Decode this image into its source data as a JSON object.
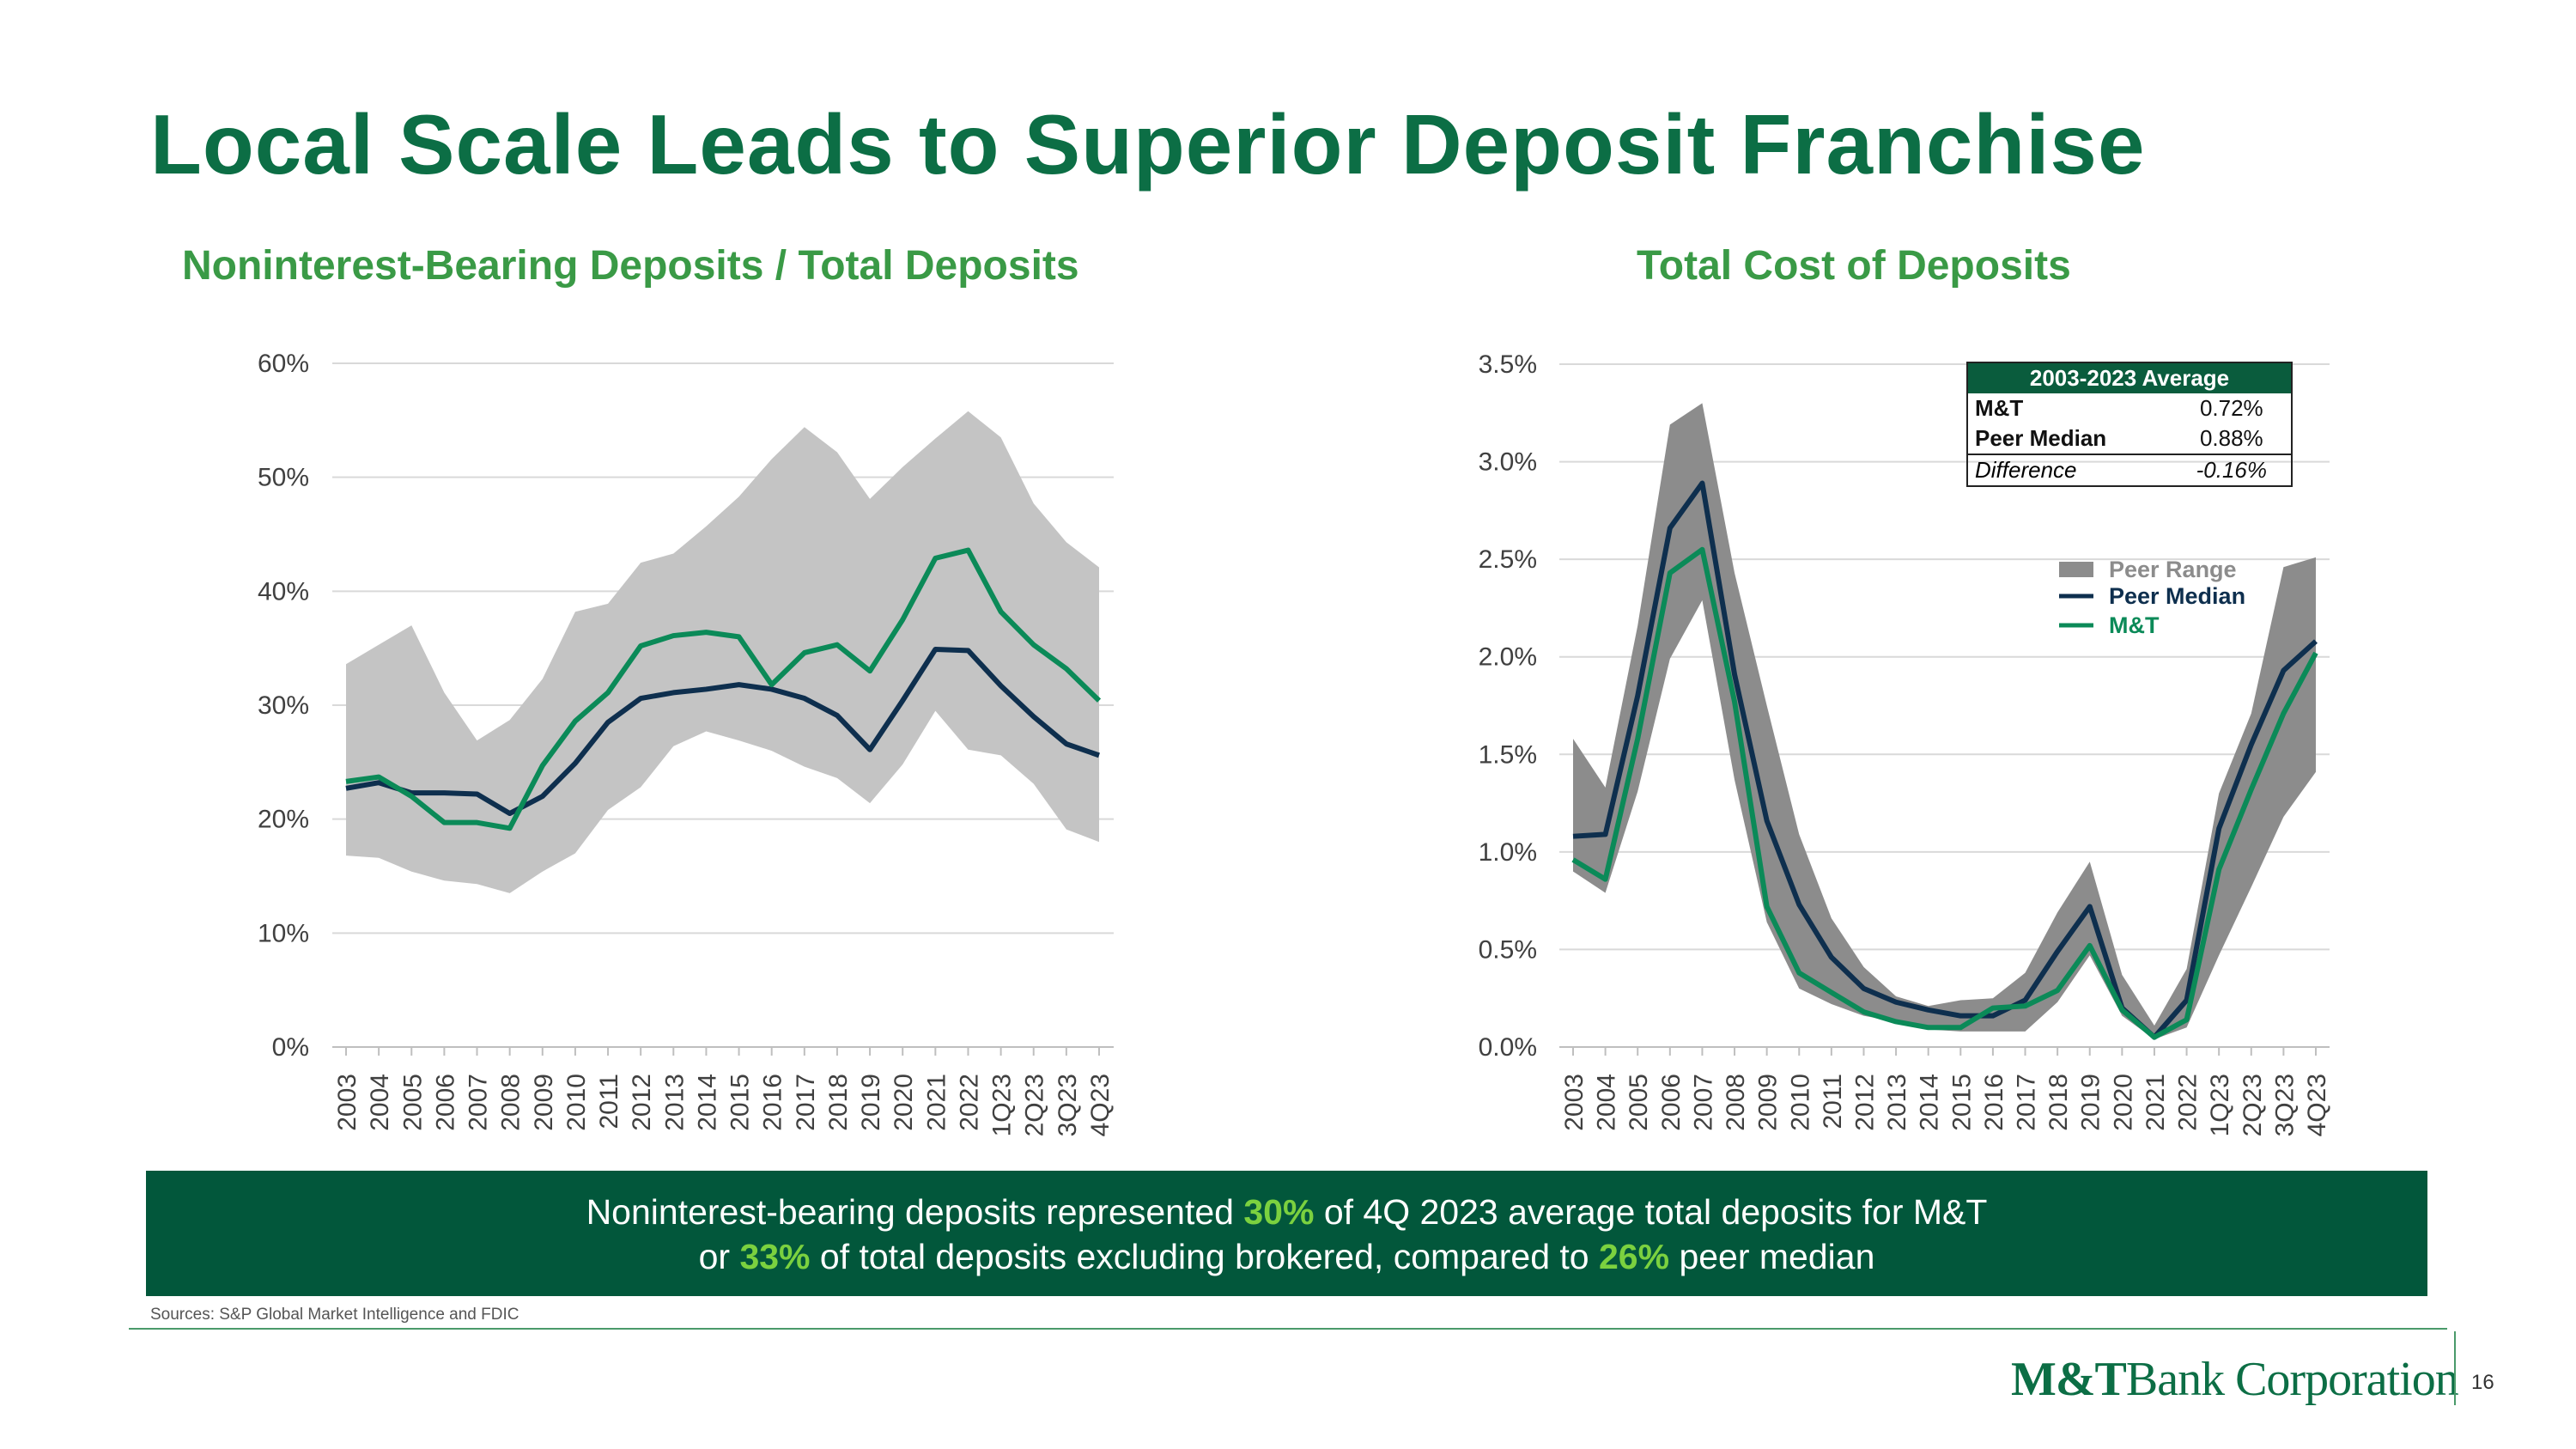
{
  "page": {
    "title": "Local Scale Leads to Superior Deposit Franchise",
    "sources": "Sources: S&P Global Market Intelligence and FDIC",
    "page_number": "16",
    "logo": {
      "brand": "M&T",
      "name": "Bank Corporation"
    }
  },
  "banner": {
    "line1_a": "Noninterest-bearing deposits represented ",
    "line1_hl": "30%",
    "line1_b": " of 4Q 2023 average total deposits for M&T",
    "line2_a": "or ",
    "line2_hl1": "33%",
    "line2_b": " of total deposits excluding brokered, compared to ",
    "line2_hl2": "26%",
    "line2_c": " peer median"
  },
  "avg_table": {
    "header": "2003-2023 Average",
    "rows": [
      {
        "label": "M&T",
        "value": "0.72%"
      },
      {
        "label": "Peer Median",
        "value": "0.88%"
      }
    ],
    "diff": {
      "label": "Difference",
      "value": "-0.16%"
    }
  },
  "colors": {
    "title": "#0c6e45",
    "chart_title": "#3a9a46",
    "mt_line": "#0b8a58",
    "peer_median": "#0e2f4e",
    "range_light": "#c4c4c4",
    "range_dark": "#8c8c8c",
    "banner_bg": "#02573b",
    "banner_highlight": "#7bd13f"
  },
  "chart_data": [
    {
      "type": "area",
      "title": "Noninterest-Bearing Deposits / Total Deposits",
      "categories": [
        "2003",
        "2004",
        "2005",
        "2006",
        "2007",
        "2008",
        "2009",
        "2010",
        "2011",
        "2012",
        "2013",
        "2014",
        "2015",
        "2016",
        "2017",
        "2018",
        "2019",
        "2020",
        "2021",
        "2022",
        "1Q23",
        "2Q23",
        "3Q23",
        "4Q23"
      ],
      "ylim": [
        0,
        60
      ],
      "yticks": [
        0,
        10,
        20,
        30,
        40,
        50,
        60
      ],
      "ytick_labels": [
        "0%",
        "10%",
        "20%",
        "30%",
        "40%",
        "50%",
        "60%"
      ],
      "grid": true,
      "range_low": [
        16.8,
        16.6,
        15.4,
        14.6,
        14.3,
        13.5,
        15.4,
        17.0,
        20.8,
        22.8,
        26.4,
        27.7,
        26.9,
        26.0,
        24.6,
        23.6,
        21.4,
        24.8,
        29.5,
        26.1,
        25.6,
        23.1,
        19.1,
        18.0
      ],
      "range_high": [
        33.6,
        35.3,
        37.0,
        31.1,
        26.9,
        28.7,
        32.3,
        38.2,
        38.9,
        42.5,
        43.3,
        45.7,
        48.3,
        51.6,
        54.4,
        52.2,
        48.1,
        50.9,
        53.4,
        55.8,
        53.5,
        47.7,
        44.3,
        42.1
      ],
      "series": [
        {
          "name": "M&T",
          "values": [
            23.3,
            23.7,
            22.0,
            19.7,
            19.7,
            19.2,
            24.7,
            28.6,
            31.1,
            35.2,
            36.1,
            36.4,
            36.0,
            31.8,
            34.6,
            35.3,
            33.0,
            37.5,
            42.9,
            43.6,
            38.2,
            35.3,
            33.2,
            30.4
          ]
        },
        {
          "name": "Peer Median",
          "values": [
            22.7,
            23.2,
            22.3,
            22.3,
            22.2,
            20.5,
            22.0,
            24.9,
            28.5,
            30.6,
            31.1,
            31.4,
            31.8,
            31.4,
            30.6,
            29.1,
            26.1,
            30.4,
            34.9,
            34.8,
            31.7,
            29.0,
            26.6,
            25.6
          ]
        }
      ]
    },
    {
      "type": "area",
      "title": "Total Cost of Deposits",
      "categories": [
        "2003",
        "2004",
        "2005",
        "2006",
        "2007",
        "2008",
        "2009",
        "2010",
        "2011",
        "2012",
        "2013",
        "2014",
        "2015",
        "2016",
        "2017",
        "2018",
        "2019",
        "2020",
        "2021",
        "2022",
        "1Q23",
        "2Q23",
        "3Q23",
        "4Q23"
      ],
      "ylim": [
        0,
        3.5
      ],
      "yticks": [
        0,
        0.5,
        1.0,
        1.5,
        2.0,
        2.5,
        3.0,
        3.5
      ],
      "ytick_labels": [
        "0.0%",
        "0.5%",
        "1.0%",
        "1.5%",
        "2.0%",
        "2.5%",
        "3.0%",
        "3.5%"
      ],
      "grid": true,
      "legend": {
        "position": "top-right",
        "entries": [
          "Peer Range",
          "Peer Median",
          "M&T"
        ]
      },
      "range_low": [
        0.9,
        0.79,
        1.31,
        1.99,
        2.29,
        1.37,
        0.64,
        0.3,
        0.22,
        0.16,
        0.13,
        0.09,
        0.08,
        0.08,
        0.08,
        0.23,
        0.47,
        0.16,
        0.04,
        0.1,
        0.47,
        0.82,
        1.18,
        1.41
      ],
      "range_high": [
        1.58,
        1.33,
        2.16,
        3.19,
        3.3,
        2.43,
        1.75,
        1.09,
        0.66,
        0.41,
        0.26,
        0.21,
        0.24,
        0.25,
        0.38,
        0.69,
        0.95,
        0.37,
        0.11,
        0.4,
        1.3,
        1.71,
        2.46,
        2.51
      ],
      "series": [
        {
          "name": "M&T",
          "values": [
            0.96,
            0.86,
            1.58,
            2.43,
            2.55,
            1.77,
            0.72,
            0.38,
            0.28,
            0.18,
            0.13,
            0.1,
            0.1,
            0.2,
            0.21,
            0.29,
            0.52,
            0.19,
            0.05,
            0.14,
            0.91,
            1.32,
            1.71,
            2.02
          ]
        },
        {
          "name": "Peer Median",
          "values": [
            1.08,
            1.09,
            1.8,
            2.66,
            2.89,
            1.91,
            1.16,
            0.73,
            0.46,
            0.3,
            0.23,
            0.19,
            0.16,
            0.16,
            0.24,
            0.49,
            0.72,
            0.2,
            0.05,
            0.24,
            1.12,
            1.55,
            1.93,
            2.08
          ]
        }
      ]
    }
  ]
}
